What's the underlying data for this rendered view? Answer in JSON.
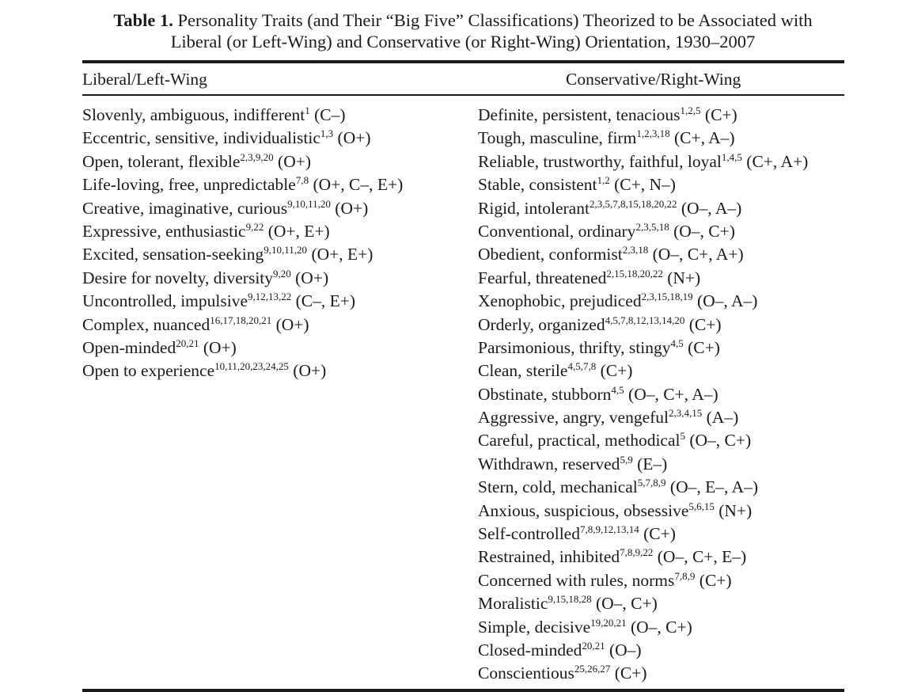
{
  "caption": {
    "label": "Table 1.",
    "line1": "Personality Traits (and Their “Big Five” Classifications) Theorized to be Associated with",
    "line2": "Liberal (or Left-Wing) and Conservative (or Right-Wing) Orientation, 1930–2007"
  },
  "columns": {
    "left_header": "Liberal/Left-Wing",
    "right_header": "Conservative/Right-Wing"
  },
  "left_rows": [
    {
      "trait": "Slovenly, ambiguous, indifferent",
      "refs": "1",
      "class": "(C–)"
    },
    {
      "trait": "Eccentric, sensitive, individualistic",
      "refs": "1,3",
      "class": "(O+)"
    },
    {
      "trait": "Open, tolerant, flexible",
      "refs": "2,3,9,20",
      "class": "(O+)"
    },
    {
      "trait": "Life-loving, free, unpredictable",
      "refs": "7,8",
      "class": "(O+, C–, E+)"
    },
    {
      "trait": "Creative, imaginative, curious",
      "refs": "9,10,11,20",
      "class": "(O+)"
    },
    {
      "trait": "Expressive, enthusiastic",
      "refs": "9,22",
      "class": "(O+, E+)"
    },
    {
      "trait": "Excited, sensation-seeking",
      "refs": "9,10,11,20",
      "class": "(O+, E+)"
    },
    {
      "trait": "Desire for novelty, diversity",
      "refs": "9,20",
      "class": "(O+)"
    },
    {
      "trait": "Uncontrolled, impulsive",
      "refs": "9,12,13,22",
      "class": "(C–, E+)"
    },
    {
      "trait": "Complex, nuanced",
      "refs": "16,17,18,20,21",
      "class": "(O+)"
    },
    {
      "trait": "Open-minded",
      "refs": "20,21",
      "class": "(O+)"
    },
    {
      "trait": "Open to experience",
      "refs": "10,11,20,23,24,25",
      "class": "(O+)"
    }
  ],
  "right_rows": [
    {
      "trait": "Definite, persistent, tenacious",
      "refs": "1,2,5",
      "class": "(C+)"
    },
    {
      "trait": "Tough, masculine, firm",
      "refs": "1,2,3,18",
      "class": "(C+, A–)"
    },
    {
      "trait": "Reliable, trustworthy, faithful, loyal",
      "refs": "1,4,5",
      "class": "(C+, A+)"
    },
    {
      "trait": "Stable, consistent",
      "refs": "1,2",
      "class": "(C+, N–)"
    },
    {
      "trait": "Rigid, intolerant",
      "refs": "2,3,5,7,8,15,18,20,22",
      "class": "(O–, A–)"
    },
    {
      "trait": "Conventional, ordinary",
      "refs": "2,3,5,18",
      "class": "(O–, C+)"
    },
    {
      "trait": "Obedient, conformist",
      "refs": "2,3,18",
      "class": "(O–, C+, A+)"
    },
    {
      "trait": "Fearful, threatened",
      "refs": "2,15,18,20,22",
      "class": "(N+)"
    },
    {
      "trait": "Xenophobic, prejudiced",
      "refs": "2,3,15,18,19",
      "class": "(O–, A–)"
    },
    {
      "trait": "Orderly, organized",
      "refs": "4,5,7,8,12,13,14,20",
      "class": "(C+)"
    },
    {
      "trait": "Parsimonious, thrifty, stingy",
      "refs": "4,5",
      "class": "(C+)"
    },
    {
      "trait": "Clean, sterile",
      "refs": "4,5,7,8",
      "class": "(C+)"
    },
    {
      "trait": "Obstinate, stubborn",
      "refs": "4,5",
      "class": "(O–, C+, A–)"
    },
    {
      "trait": "Aggressive, angry, vengeful",
      "refs": "2,3,4,15",
      "class": "(A–)"
    },
    {
      "trait": "Careful, practical, methodical",
      "refs": "5",
      "class": "(O–, C+)"
    },
    {
      "trait": "Withdrawn, reserved",
      "refs": "5,9",
      "class": "(E–)"
    },
    {
      "trait": "Stern, cold, mechanical",
      "refs": "5,7,8,9",
      "class": "(O–, E–, A–)"
    },
    {
      "trait": "Anxious, suspicious, obsessive",
      "refs": "5,6,15",
      "class": "(N+)"
    },
    {
      "trait": "Self-controlled",
      "refs": "7,8,9,12,13,14",
      "class": "(C+)"
    },
    {
      "trait": "Restrained, inhibited",
      "refs": "7,8,9,22",
      "class": "(O–, C+, E–)"
    },
    {
      "trait": "Concerned with rules, norms",
      "refs": "7,8,9",
      "class": "(C+)"
    },
    {
      "trait": "Moralistic",
      "refs": "9,15,18,28",
      "class": "(O–, C+)"
    },
    {
      "trait": "Simple, decisive",
      "refs": "19,20,21",
      "class": "(O–, C+)"
    },
    {
      "trait": "Closed-minded",
      "refs": "20,21",
      "class": "(O–)"
    },
    {
      "trait": "Conscientious",
      "refs": "25,26,27",
      "class": "(C+)"
    }
  ]
}
